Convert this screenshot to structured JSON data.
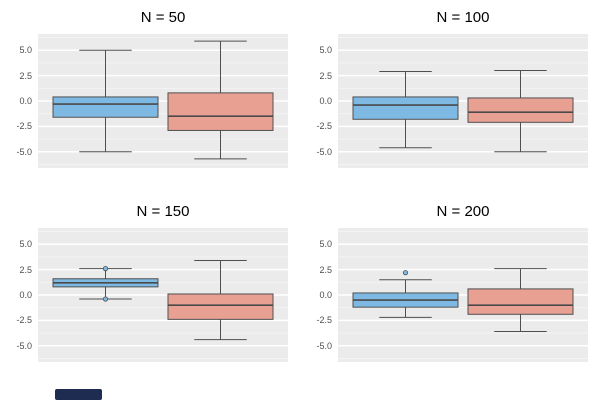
{
  "figure": {
    "background": "#ffffff",
    "cropped_element_color": "#1d2c50"
  },
  "chart_data": {
    "type": "boxplot",
    "layout": "2x2-facet-grid",
    "orientation": "vertical",
    "ylim": [
      -6.6,
      6.6
    ],
    "yticks": [
      5.0,
      2.5,
      0.0,
      -2.5,
      -5.0
    ],
    "minor_ticks": [
      6.25,
      3.75,
      1.25,
      -1.25,
      -3.75,
      -6.25
    ],
    "panel_bg": "#ebebeb",
    "grid_major_color": "#ffffff",
    "grid_minor_color": "#f5f5f5",
    "stroke": "#4f4f4f",
    "median_stroke": "#4a4a4a",
    "box_centers": [
      0.27,
      0.73
    ],
    "box_halfwidth": 0.21,
    "colors": {
      "blue": "#7db9e3",
      "salmon": "#e8a093"
    },
    "panels": [
      {
        "title": "N = 50",
        "boxes": [
          {
            "color": "blue",
            "low": -5.0,
            "q1": -1.6,
            "median": -0.3,
            "q3": 0.4,
            "high": 5.0,
            "outliers": []
          },
          {
            "color": "salmon",
            "low": -5.7,
            "q1": -2.9,
            "median": -1.5,
            "q3": 0.8,
            "high": 5.9,
            "outliers": []
          }
        ]
      },
      {
        "title": "N = 100",
        "boxes": [
          {
            "color": "blue",
            "low": -4.6,
            "q1": -1.8,
            "median": -0.4,
            "q3": 0.4,
            "high": 2.9,
            "outliers": []
          },
          {
            "color": "salmon",
            "low": -5.0,
            "q1": -2.1,
            "median": -1.1,
            "q3": 0.3,
            "high": 3.0,
            "outliers": []
          }
        ]
      },
      {
        "title": "N = 150",
        "boxes": [
          {
            "color": "blue",
            "low": -0.4,
            "q1": 0.8,
            "median": 1.2,
            "q3": 1.6,
            "high": 2.6,
            "outliers": [
              2.6,
              -0.4
            ]
          },
          {
            "color": "salmon",
            "low": -4.4,
            "q1": -2.4,
            "median": -1.0,
            "q3": 0.1,
            "high": 3.4,
            "outliers": []
          }
        ]
      },
      {
        "title": "N = 200",
        "boxes": [
          {
            "color": "blue",
            "low": -2.2,
            "q1": -1.2,
            "median": -0.5,
            "q3": 0.2,
            "high": 1.5,
            "outliers": [
              2.2
            ]
          },
          {
            "color": "salmon",
            "low": -3.6,
            "q1": -1.9,
            "median": -1.0,
            "q3": 0.6,
            "high": 2.6,
            "outliers": []
          }
        ]
      }
    ]
  }
}
